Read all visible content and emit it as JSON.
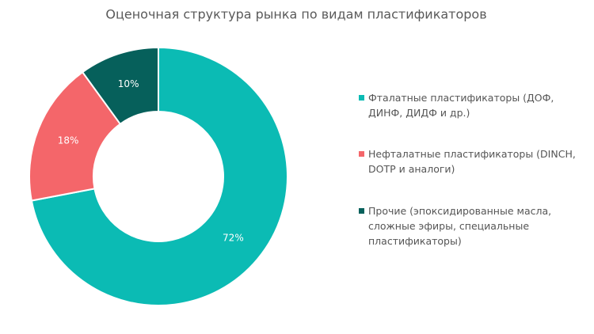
{
  "chart_data": {
    "type": "donut",
    "title": "Оценочная структура рынка по видам пластификаторов",
    "categories": [
      "Фталатные пластификаторы (ДОФ, ДИНФ, ДИДФ  и др.)",
      "Нефталатные пластификаторы (DINCH, DOTP и аналоги)",
      "Прочие (эпоксидированные масла, сложные эфиры, специальные пластификаторы)"
    ],
    "values": [
      72,
      18,
      10
    ],
    "value_labels": [
      "72%",
      "18%",
      "10%"
    ],
    "colors": [
      "#0bbbb4",
      "#f4666a",
      "#06605b"
    ],
    "legend": "right"
  }
}
